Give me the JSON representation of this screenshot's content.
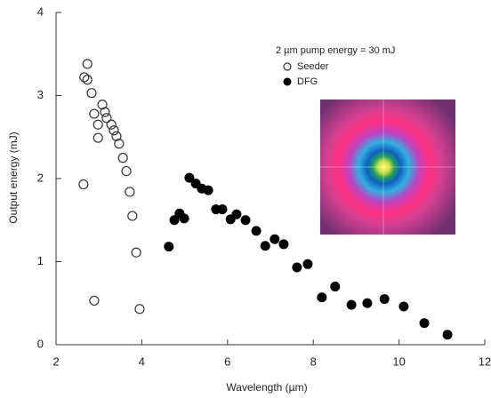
{
  "chart_data": {
    "type": "scatter",
    "x_label": "Wavelength (µm)",
    "y_label": "Output energy (mJ)",
    "annotation": "2 µm pump energy = 30 mJ",
    "xlim": [
      2,
      12
    ],
    "xticks": [
      2,
      4,
      6,
      8,
      10,
      12
    ],
    "ylim": [
      0,
      4
    ],
    "yticks": [
      0,
      1,
      2,
      3,
      4
    ],
    "legend": "upper right",
    "series": [
      {
        "name": "Seeder",
        "color": "#333333",
        "marker": "open",
        "x": [
          2.73,
          2.66,
          2.73,
          2.83,
          2.89,
          2.98,
          2.98,
          3.08,
          3.14,
          3.18,
          3.29,
          3.35,
          3.41,
          3.47,
          3.56,
          3.64,
          3.72,
          3.78,
          3.87,
          2.64,
          2.89,
          3.95
        ],
        "values": [
          3.38,
          3.22,
          3.19,
          3.03,
          2.78,
          2.65,
          2.49,
          2.89,
          2.8,
          2.73,
          2.65,
          2.58,
          2.51,
          2.42,
          2.25,
          2.09,
          1.84,
          1.55,
          1.11,
          1.93,
          0.53,
          0.43
        ]
      },
      {
        "name": "DFG",
        "color": "#000000",
        "marker": "filled",
        "x": [
          4.63,
          4.76,
          4.88,
          4.99,
          5.11,
          5.26,
          5.4,
          5.55,
          5.73,
          5.88,
          6.07,
          6.21,
          6.42,
          6.67,
          6.88,
          7.1,
          7.31,
          7.62,
          7.87,
          8.2,
          8.51,
          8.89,
          9.26,
          9.66,
          10.11,
          10.59,
          11.13
        ],
        "values": [
          1.18,
          1.5,
          1.58,
          1.52,
          2.01,
          1.94,
          1.88,
          1.86,
          1.63,
          1.63,
          1.51,
          1.57,
          1.5,
          1.37,
          1.19,
          1.27,
          1.21,
          0.93,
          0.97,
          0.57,
          0.7,
          0.48,
          0.5,
          0.55,
          0.46,
          0.26,
          0.12
        ]
      }
    ]
  }
}
